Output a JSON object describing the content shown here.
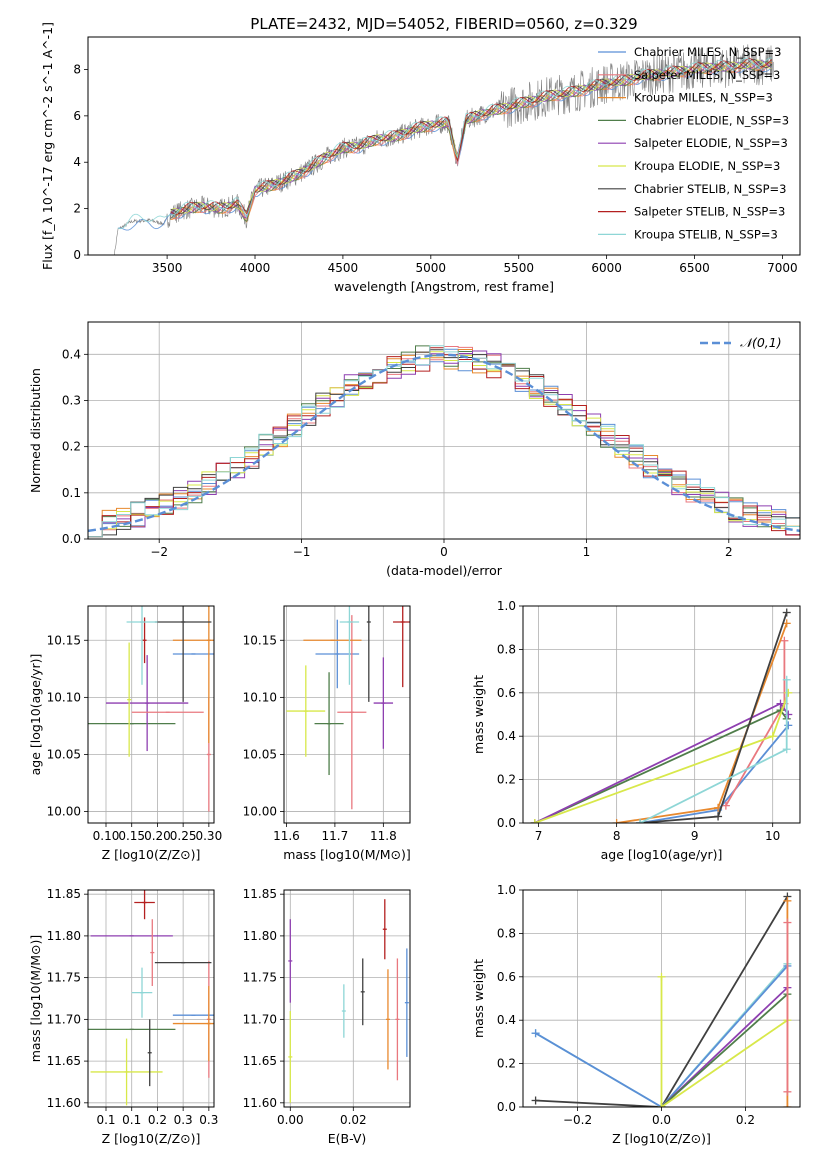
{
  "figure": {
    "title": "PLATE=2432, MJD=54052, FIBERID=0560, z=0.329"
  },
  "chart_data": [
    {
      "id": "spectrum",
      "type": "line",
      "xlabel": "wavelength [Angstrom, rest frame]",
      "ylabel": "Flux [f_λ 10^-17 erg cm^-2 s^-1 A^-1]",
      "xlim": [
        3050,
        7100
      ],
      "ylim": [
        0,
        9.4
      ],
      "xticks": [
        3500,
        4000,
        4500,
        5000,
        5500,
        6000,
        6500,
        7000
      ],
      "yticks": [
        0,
        2,
        4,
        6,
        8
      ],
      "legend_position": "top-right",
      "data_curve": {
        "x": [
          3200,
          3220,
          3300,
          3400,
          3480,
          3520,
          3600,
          3700,
          3800,
          3900,
          3950,
          4000,
          4100,
          4200,
          4300,
          4400,
          4500,
          4600,
          4700,
          4800,
          4900,
          5000,
          5100,
          5150,
          5200,
          5300,
          5400,
          5500,
          5600,
          5700,
          5800,
          5900,
          6000,
          6100,
          6200,
          6300,
          6400,
          6500,
          6600,
          6700,
          6800,
          6900
        ],
        "y": [
          0.0,
          1.1,
          1.45,
          1.5,
          1.35,
          1.75,
          1.95,
          2.1,
          2.0,
          2.2,
          1.6,
          2.8,
          3.0,
          3.3,
          3.7,
          4.2,
          4.6,
          4.7,
          5.0,
          5.1,
          5.4,
          5.6,
          5.7,
          4.1,
          5.8,
          6.1,
          6.3,
          6.5,
          6.7,
          6.9,
          7.0,
          7.2,
          7.4,
          7.5,
          7.7,
          7.8,
          7.9,
          8.0,
          8.1,
          8.1,
          8.2,
          8.2
        ]
      },
      "series": [
        {
          "name": "Chabrier MILES, N_SSP=3",
          "color": "#5b8fd6"
        },
        {
          "name": "Salpeter MILES, N_SSP=3",
          "color": "#e9787f"
        },
        {
          "name": "Kroupa MILES, N_SSP=3",
          "color": "#e8892e"
        },
        {
          "name": "Chabrier ELODIE, N_SSP=3",
          "color": "#4f7d4a"
        },
        {
          "name": "Salpeter ELODIE, N_SSP=3",
          "color": "#8e3fb0"
        },
        {
          "name": "Kroupa ELODIE, N_SSP=3",
          "color": "#d8e84a"
        },
        {
          "name": "Chabrier STELIB, N_SSP=3",
          "color": "#404040"
        },
        {
          "name": "Salpeter STELIB, N_SSP=3",
          "color": "#b42020"
        },
        {
          "name": "Kroupa STELIB, N_SSP=3",
          "color": "#8ed6d6"
        }
      ]
    },
    {
      "id": "residuals",
      "type": "line",
      "xlabel": "(data-model)/error",
      "ylabel": "Normed distribution",
      "xlim": [
        -2.5,
        2.5
      ],
      "ylim": [
        0,
        0.47
      ],
      "xticks": [
        -2,
        -1,
        0,
        1,
        2
      ],
      "yticks": [
        0.0,
        0.1,
        0.2,
        0.3,
        0.4
      ],
      "grid": true,
      "legend_position": "top-right",
      "gaussian_label": "𝒩(0,1)",
      "gaussian_color": "#5b8fd6",
      "bin_width": 0.1,
      "hist_x_start": -2.5
    },
    {
      "id": "age-vs-Z",
      "type": "scatter",
      "xlabel": "Z [log10(Z/Z⊙)]",
      "ylabel": "age [log10(age/yr)]",
      "xlim": [
        0.065,
        0.31
      ],
      "ylim": [
        9.99,
        10.18
      ],
      "xticks": [
        0.1,
        0.15,
        0.2,
        0.25,
        0.3
      ],
      "yticks": [
        10.0,
        10.05,
        10.1,
        10.15
      ],
      "grid": true,
      "points": [
        {
          "color": "#5b8fd6",
          "x": 0.27,
          "y": 10.138,
          "xerr": 0.04,
          "yerr": 0.0
        },
        {
          "color": "#e9787f",
          "x": 0.3,
          "y": 10.05,
          "xerr": 0.0,
          "yerr": 0.05
        },
        {
          "color": "#e8892e",
          "x": 0.3,
          "y": 10.15,
          "xerr": 0.07,
          "yerr": 0.09
        },
        {
          "color": "#4f7d4a",
          "x": 0.15,
          "y": 10.077,
          "xerr": 0.085,
          "yerr": 0.0
        },
        {
          "color": "#8e3fb0",
          "x": 0.18,
          "y": 10.095,
          "xerr": 0.08,
          "yerr": 0.042
        },
        {
          "color": "#d8e84a",
          "x": 0.145,
          "y": 10.098,
          "xerr": 0.0,
          "yerr": 0.05
        },
        {
          "color": "#404040",
          "x": 0.25,
          "y": 10.166,
          "xerr": 0.055,
          "yerr": 0.07
        },
        {
          "color": "#b42020",
          "x": 0.175,
          "y": 10.15,
          "xerr": 0.0,
          "yerr": 0.02
        },
        {
          "color": "#8ed6d6",
          "x": 0.17,
          "y": 10.166,
          "xerr": 0.03,
          "yerr": 0.055
        },
        {
          "color": "#e9787f",
          "x": 0.22,
          "y": 10.087,
          "xerr": 0.07,
          "yerr": 0.0
        }
      ]
    },
    {
      "id": "age-vs-mass",
      "type": "scatter",
      "xlabel": "mass [log10(M/M⊙)]",
      "ylabel": "",
      "xlim": [
        11.595,
        11.855
      ],
      "ylim": [
        9.99,
        10.18
      ],
      "xticks": [
        11.6,
        11.7,
        11.8
      ],
      "yticks": [
        10.0,
        10.05,
        10.1,
        10.15
      ],
      "grid": true,
      "points": [
        {
          "color": "#5b8fd6",
          "x": 11.705,
          "y": 10.138,
          "xerr": 0.045,
          "yerr": 0.03
        },
        {
          "color": "#e9787f",
          "x": 11.735,
          "y": 10.087,
          "xerr": 0.03,
          "yerr": 0.085
        },
        {
          "color": "#e8892e",
          "x": 11.695,
          "y": 10.15,
          "xerr": 0.06,
          "yerr": 0.0
        },
        {
          "color": "#4f7d4a",
          "x": 11.688,
          "y": 10.077,
          "xerr": 0.03,
          "yerr": 0.045
        },
        {
          "color": "#8e3fb0",
          "x": 11.8,
          "y": 10.095,
          "xerr": 0.02,
          "yerr": 0.04
        },
        {
          "color": "#d8e84a",
          "x": 11.64,
          "y": 10.088,
          "xerr": 0.04,
          "yerr": 0.04
        },
        {
          "color": "#404040",
          "x": 11.77,
          "y": 10.166,
          "xerr": 0.0,
          "yerr": 0.07
        },
        {
          "color": "#b42020",
          "x": 11.84,
          "y": 10.166,
          "xerr": 0.02,
          "yerr": 0.057
        },
        {
          "color": "#8ed6d6",
          "x": 11.73,
          "y": 10.166,
          "xerr": 0.02,
          "yerr": 0.055
        }
      ]
    },
    {
      "id": "weight-vs-age",
      "type": "line",
      "xlabel": "age [log10(age/yr)]",
      "ylabel": "mass weight",
      "xlim": [
        6.8,
        10.35
      ],
      "ylim": [
        0,
        1.0
      ],
      "xticks": [
        7,
        8,
        9,
        10
      ],
      "yticks": [
        0.0,
        0.2,
        0.4,
        0.6,
        0.8,
        1.0
      ],
      "grid": true,
      "series": [
        {
          "color": "#5b8fd6",
          "x": [
            8.3,
            9.3,
            10.2
          ],
          "y": [
            0.0,
            0.06,
            0.45
          ]
        },
        {
          "color": "#e9787f",
          "x": [
            9.4,
            10.15,
            10.15
          ],
          "y": [
            0.08,
            0.55,
            0.84
          ]
        },
        {
          "color": "#e8892e",
          "x": [
            8.0,
            9.3,
            10.18
          ],
          "y": [
            0.0,
            0.07,
            0.92
          ]
        },
        {
          "color": "#4f7d4a",
          "x": [
            6.95,
            10.1,
            10.18
          ],
          "y": [
            0.0,
            0.52,
            0.48
          ]
        },
        {
          "color": "#8e3fb0",
          "x": [
            6.95,
            10.1,
            10.2
          ],
          "y": [
            0.0,
            0.55,
            0.5
          ]
        },
        {
          "color": "#d8e84a",
          "x": [
            6.95,
            10.0,
            10.2
          ],
          "y": [
            0.0,
            0.4,
            0.6
          ]
        },
        {
          "color": "#404040",
          "x": [
            8.3,
            9.3,
            10.18
          ],
          "y": [
            0.0,
            0.03,
            0.97
          ]
        },
        {
          "color": "#8ed6d6",
          "x": [
            8.3,
            10.18,
            10.18
          ],
          "y": [
            0.0,
            0.34,
            0.66
          ]
        }
      ]
    },
    {
      "id": "mass-vs-Z",
      "type": "scatter",
      "xlabel": "Z [log10(Z/Z⊙)]",
      "ylabel": "mass [log10(M/M⊙)]",
      "xlim": [
        0.065,
        0.31
      ],
      "ylim": [
        11.595,
        11.855
      ],
      "xticks": [
        0.1,
        0.15,
        0.2,
        0.25,
        0.3
      ],
      "yticks": [
        11.6,
        11.65,
        11.7,
        11.75,
        11.8,
        11.85
      ],
      "grid": true,
      "points": [
        {
          "color": "#5b8fd6",
          "x": 0.27,
          "y": 11.705,
          "xerr": 0.04,
          "yerr": 0.0
        },
        {
          "color": "#e9787f",
          "x": 0.3,
          "y": 11.7,
          "xerr": 0.0,
          "yerr": 0.07
        },
        {
          "color": "#e8892e",
          "x": 0.3,
          "y": 11.695,
          "xerr": 0.07,
          "yerr": 0.045
        },
        {
          "color": "#4f7d4a",
          "x": 0.15,
          "y": 11.688,
          "xerr": 0.085,
          "yerr": 0.0
        },
        {
          "color": "#8e3fb0",
          "x": 0.15,
          "y": 11.8,
          "xerr": 0.08,
          "yerr": 0.0
        },
        {
          "color": "#d8e84a",
          "x": 0.14,
          "y": 11.637,
          "xerr": 0.07,
          "yerr": 0.04
        },
        {
          "color": "#404040",
          "x": 0.25,
          "y": 11.768,
          "xerr": 0.055,
          "yerr": 0.0
        },
        {
          "color": "#b42020",
          "x": 0.175,
          "y": 11.84,
          "xerr": 0.02,
          "yerr": 0.02
        },
        {
          "color": "#8ed6d6",
          "x": 0.17,
          "y": 11.732,
          "xerr": 0.02,
          "yerr": 0.03
        },
        {
          "color": "#404040",
          "x": 0.185,
          "y": 11.66,
          "xerr": 0.0,
          "yerr": 0.04
        },
        {
          "color": "#e9787f",
          "x": 0.19,
          "y": 11.78,
          "xerr": 0.0,
          "yerr": 0.04
        }
      ]
    },
    {
      "id": "mass-vs-EBV",
      "type": "scatter",
      "xlabel": "E(B-V)",
      "ylabel": "",
      "xlim": [
        -0.002,
        0.038
      ],
      "ylim": [
        11.595,
        11.855
      ],
      "xticks": [
        0.0,
        0.02
      ],
      "yticks": [
        11.6,
        11.65,
        11.7,
        11.75,
        11.8,
        11.85
      ],
      "grid": true,
      "points": [
        {
          "color": "#8e3fb0",
          "x": 0.0,
          "y": 11.77,
          "xerr": 0.0,
          "yerr": 0.05
        },
        {
          "color": "#d8e84a",
          "x": 0.0,
          "y": 11.655,
          "xerr": 0.0,
          "yerr": 0.055
        },
        {
          "color": "#8ed6d6",
          "x": 0.017,
          "y": 11.71,
          "xerr": 0.0,
          "yerr": 0.032
        },
        {
          "color": "#404040",
          "x": 0.023,
          "y": 11.733,
          "xerr": 0.0,
          "yerr": 0.04
        },
        {
          "color": "#b42020",
          "x": 0.03,
          "y": 11.808,
          "xerr": 0.0,
          "yerr": 0.036
        },
        {
          "color": "#e8892e",
          "x": 0.031,
          "y": 11.7,
          "xerr": 0.0,
          "yerr": 0.06
        },
        {
          "color": "#e9787f",
          "x": 0.034,
          "y": 11.7,
          "xerr": 0.0,
          "yerr": 0.073
        },
        {
          "color": "#5b8fd6",
          "x": 0.037,
          "y": 11.72,
          "xerr": 0.0,
          "yerr": 0.065
        }
      ]
    },
    {
      "id": "weight-vs-Z",
      "type": "line",
      "xlabel": "Z [log10(Z/Z⊙)]",
      "ylabel": "mass weight",
      "xlim": [
        -0.33,
        0.33
      ],
      "ylim": [
        0,
        1.0
      ],
      "xticks": [
        -0.2,
        0.0,
        0.2
      ],
      "yticks": [
        0.0,
        0.2,
        0.4,
        0.6,
        0.8,
        1.0
      ],
      "grid": true,
      "series": [
        {
          "color": "#404040",
          "x": [
            -0.3,
            0.0,
            0.3
          ],
          "y": [
            0.03,
            0.0,
            0.97
          ]
        },
        {
          "color": "#8ed6d6",
          "x": [
            -0.3,
            0.0,
            0.3
          ],
          "y": [
            0.34,
            0.0,
            0.66
          ]
        },
        {
          "color": "#5b8fd6",
          "x": [
            -0.3,
            0.0,
            0.3
          ],
          "y": [
            0.34,
            0.0,
            0.65
          ]
        },
        {
          "color": "#8e3fb0",
          "x": [
            0.0,
            0.3
          ],
          "y": [
            0.0,
            0.55
          ]
        },
        {
          "color": "#4f7d4a",
          "x": [
            0.0,
            0.3
          ],
          "y": [
            0.0,
            0.52
          ]
        },
        {
          "color": "#d8e84a",
          "x": [
            0.0,
            0.0,
            0.3
          ],
          "y": [
            0.6,
            0.0,
            0.4
          ]
        },
        {
          "color": "#e8892e",
          "x": [
            0.3,
            0.3
          ],
          "y": [
            0.0,
            0.95
          ]
        },
        {
          "color": "#e9787f",
          "x": [
            0.3,
            0.3
          ],
          "y": [
            0.07,
            0.85
          ]
        }
      ]
    }
  ]
}
